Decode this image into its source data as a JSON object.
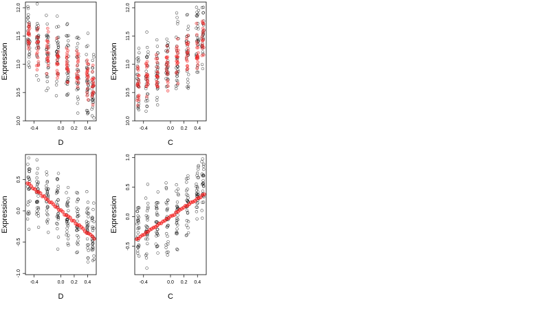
{
  "chart_data": [
    {
      "type": "scatter",
      "xlabel": "D",
      "ylabel": "Expression",
      "xlim": [
        -0.53,
        0.53
      ],
      "ylim": [
        10.0,
        12.1
      ],
      "xticks": [
        {
          "v": -0.4,
          "label": "-0.4"
        },
        {
          "v": 0.0,
          "label": "0.0"
        },
        {
          "v": 0.2,
          "label": "0.2"
        },
        {
          "v": 0.4,
          "label": "0.4"
        }
      ],
      "yticks": [
        {
          "v": 10.0,
          "label": "10.0"
        },
        {
          "v": 10.5,
          "label": "10.5"
        },
        {
          "v": 11.0,
          "label": "11.0"
        },
        {
          "v": 11.5,
          "label": "11.5"
        },
        {
          "v": 12.0,
          "label": "12.0"
        }
      ],
      "x_levels": [
        -0.48,
        -0.35,
        -0.2,
        -0.05,
        0.1,
        0.25,
        0.4,
        0.48
      ],
      "black_center": [
        11.5,
        11.35,
        11.25,
        11.15,
        11.0,
        10.85,
        10.7,
        10.6
      ],
      "black_spread": 0.7,
      "red_center": [
        11.45,
        11.3,
        11.25,
        11.1,
        11.0,
        10.9,
        10.75,
        10.65
      ],
      "red_spread": 0.45,
      "series": [
        {
          "color": "#000000",
          "marker": "open-circle"
        },
        {
          "color": "#ff0000",
          "marker": "translucent-circle"
        }
      ]
    },
    {
      "type": "scatter",
      "xlabel": "C",
      "ylabel": "Expression",
      "xlim": [
        -0.53,
        0.53
      ],
      "ylim": [
        10.0,
        12.1
      ],
      "xticks": [
        {
          "v": -0.4,
          "label": "-0.4"
        },
        {
          "v": 0.0,
          "label": "0.0"
        },
        {
          "v": 0.2,
          "label": "0.2"
        },
        {
          "v": 0.4,
          "label": "0.4"
        }
      ],
      "yticks": [
        {
          "v": 10.0,
          "label": "10.0"
        },
        {
          "v": 10.5,
          "label": "10.5"
        },
        {
          "v": 11.0,
          "label": "11.0"
        },
        {
          "v": 11.5,
          "label": "11.5"
        },
        {
          "v": 12.0,
          "label": "12.0"
        }
      ],
      "x_levels": [
        -0.48,
        -0.35,
        -0.2,
        -0.05,
        0.1,
        0.25,
        0.4,
        0.48
      ],
      "black_center": [
        10.6,
        10.75,
        10.85,
        10.95,
        11.1,
        11.25,
        11.5,
        11.65
      ],
      "black_spread": 0.65,
      "red_center": [
        10.6,
        10.75,
        10.85,
        10.95,
        11.05,
        11.2,
        11.3,
        11.45
      ],
      "red_spread": 0.45,
      "series": [
        {
          "color": "#000000",
          "marker": "open-circle"
        },
        {
          "color": "#ff0000",
          "marker": "translucent-circle"
        }
      ]
    },
    {
      "type": "scatter",
      "xlabel": "D",
      "ylabel": "Expression",
      "xlim": [
        -0.53,
        0.53
      ],
      "ylim": [
        -1.02,
        0.9
      ],
      "xticks": [
        {
          "v": -0.4,
          "label": "-0.4"
        },
        {
          "v": 0.0,
          "label": "0.0"
        },
        {
          "v": 0.2,
          "label": "0.2"
        },
        {
          "v": 0.4,
          "label": "0.4"
        }
      ],
      "yticks": [
        {
          "v": -1.0,
          "label": "-1.0"
        },
        {
          "v": -0.5,
          "label": "-0.5"
        },
        {
          "v": 0.0,
          "label": "0.0"
        },
        {
          "v": 0.5,
          "label": "0.5"
        }
      ],
      "x_levels": [
        -0.48,
        -0.35,
        -0.2,
        -0.05,
        0.1,
        0.25,
        0.4,
        0.48
      ],
      "black_center": [
        0.4,
        0.28,
        0.15,
        0.05,
        -0.05,
        -0.2,
        -0.32,
        -0.4
      ],
      "black_spread": 0.55,
      "red_line": {
        "x": [
          -0.5,
          0.5
        ],
        "y": [
          0.44,
          -0.44
        ]
      },
      "series": [
        {
          "color": "#000000",
          "marker": "open-circle"
        },
        {
          "color": "#ff0000",
          "marker": "filled-circle-line"
        }
      ]
    },
    {
      "type": "scatter",
      "xlabel": "C",
      "ylabel": "Expression",
      "xlim": [
        -0.53,
        0.53
      ],
      "ylim": [
        -0.98,
        1.05
      ],
      "xticks": [
        {
          "v": -0.4,
          "label": "-0.4"
        },
        {
          "v": 0.0,
          "label": "0.0"
        },
        {
          "v": 0.2,
          "label": "0.2"
        },
        {
          "v": 0.4,
          "label": "0.4"
        }
      ],
      "yticks": [
        {
          "v": -0.5,
          "label": "-0.5"
        },
        {
          "v": 0.0,
          "label": "0.0"
        },
        {
          "v": 0.5,
          "label": "0.5"
        },
        {
          "v": 1.0,
          "label": "1.0"
        }
      ],
      "x_levels": [
        -0.48,
        -0.35,
        -0.2,
        -0.05,
        0.1,
        0.25,
        0.4,
        0.48
      ],
      "black_center": [
        -0.3,
        -0.2,
        -0.12,
        -0.05,
        0.05,
        0.15,
        0.35,
        0.55
      ],
      "black_spread": 0.55,
      "red_line": {
        "x": [
          -0.5,
          0.5
        ],
        "y": [
          -0.38,
          0.38
        ]
      },
      "series": [
        {
          "color": "#000000",
          "marker": "open-circle"
        },
        {
          "color": "#ff0000",
          "marker": "filled-circle-line"
        }
      ]
    }
  ]
}
